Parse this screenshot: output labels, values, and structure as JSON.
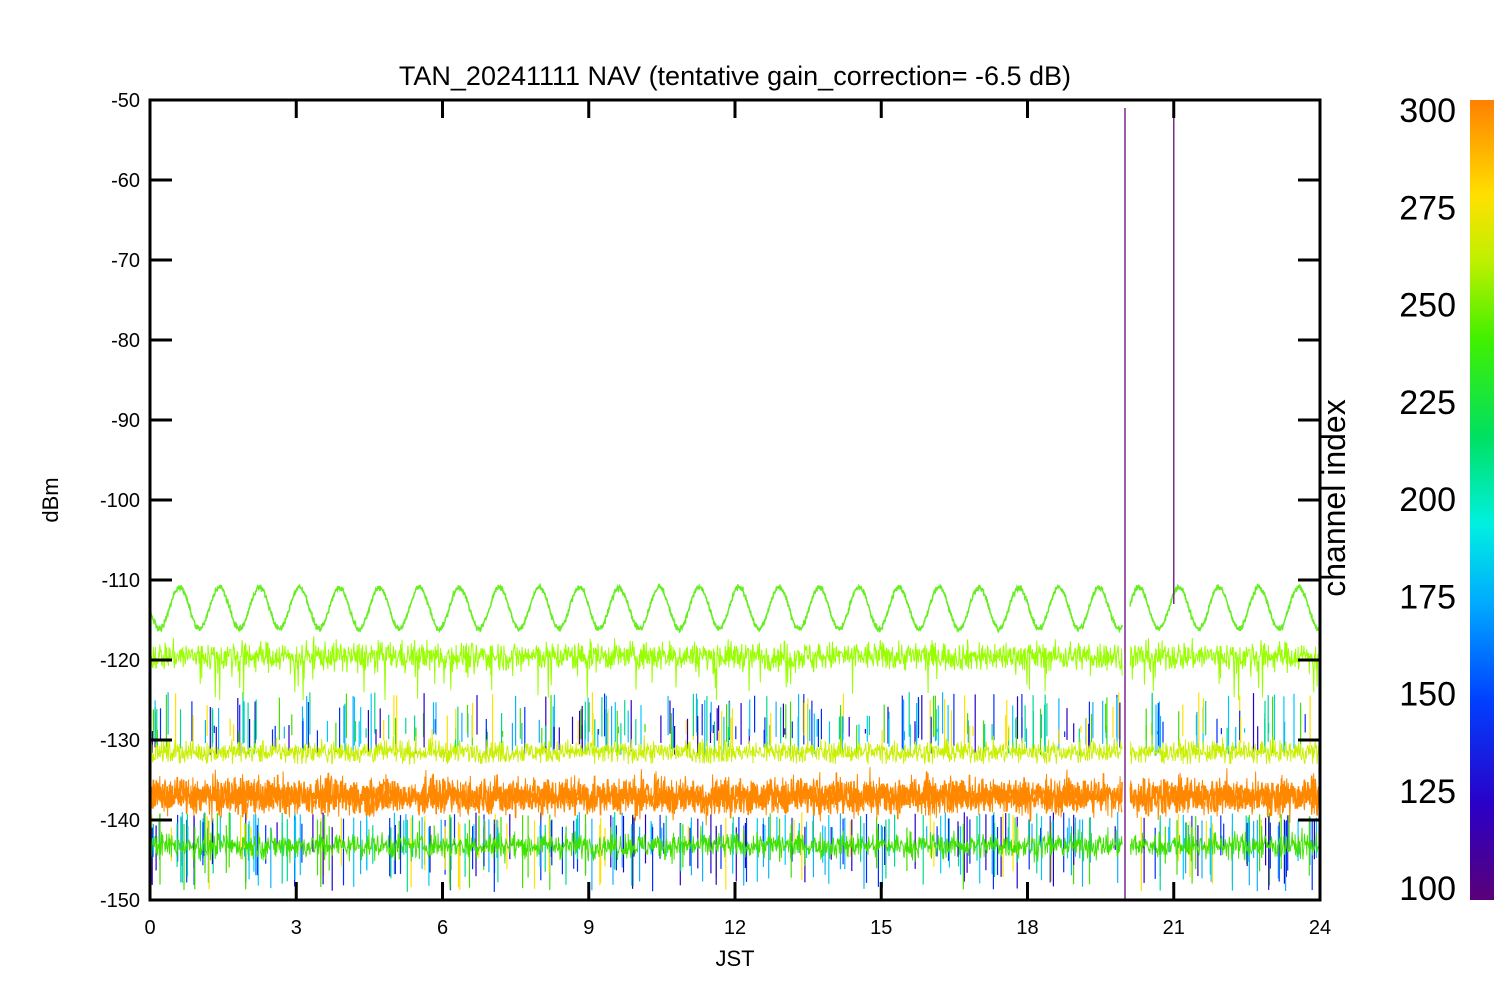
{
  "chart_data": {
    "type": "line",
    "title": "TAN_20241111 NAV (tentative gain_correction= -6.5 dB)",
    "xlabel": "JST",
    "ylabel": "dBm",
    "xlim": [
      0,
      24
    ],
    "ylim": [
      -150,
      -50
    ],
    "x_ticks": [
      "0",
      "3",
      "6",
      "9",
      "12",
      "15",
      "18",
      "21",
      "24"
    ],
    "y_ticks": [
      "-50",
      "-60",
      "-70",
      "-80",
      "-90",
      "-100",
      "-110",
      "-120",
      "-130",
      "-140",
      "-150"
    ],
    "grid": false,
    "colorbar": {
      "label": "channel index",
      "range": [
        100,
        300
      ],
      "ticks": [
        "300",
        "275",
        "250",
        "225",
        "200",
        "175",
        "150",
        "125",
        "100"
      ],
      "colormap": [
        "#5a0078",
        "#2a00c8",
        "#0040ff",
        "#00aaff",
        "#00f0e0",
        "#00e060",
        "#40f000",
        "#c0f000",
        "#ffe000",
        "#ff8000"
      ]
    },
    "series": [
      {
        "description": "sinusoidal channel near index 240",
        "color": "#66ee22",
        "x_start": 0,
        "x_end": 24,
        "mean": -113.5,
        "amplitude": 2.6,
        "period_hours": 0.82,
        "peaks": [
          [
            0.6,
            -111
          ],
          [
            1.4,
            -111
          ],
          [
            2.9,
            -111
          ],
          [
            4.5,
            -110.5
          ],
          [
            6.1,
            -110.5
          ],
          [
            7.0,
            -110.5
          ],
          [
            8.8,
            -110.5
          ],
          [
            10.3,
            -110
          ],
          [
            11.2,
            -111
          ],
          [
            14.5,
            -111
          ],
          [
            18.0,
            -111
          ],
          [
            20.7,
            -111
          ],
          [
            22.8,
            -111
          ]
        ]
      },
      {
        "description": "noisy band around channel index 255",
        "color": "#99ff00",
        "x_start": 0,
        "x_end": 24,
        "center": -119.5,
        "spread_min": -125,
        "spread_max": -113
      },
      {
        "description": "dense noise band, channels 100-300",
        "color": "#ff8800",
        "x_start": 0,
        "x_end": 24,
        "center": -137,
        "spread_min": -148,
        "spread_max": -128
      }
    ],
    "gap": {
      "x_start": 19.95,
      "x_end": 20.1
    },
    "vertical_markers": [
      {
        "x": 20.0,
        "y_top": -51,
        "y_bottom": -150,
        "color": "#7a2a8a"
      },
      {
        "x": 21.0,
        "y_top": -52,
        "y_bottom": -113,
        "color": "#7a2a8a"
      }
    ]
  }
}
